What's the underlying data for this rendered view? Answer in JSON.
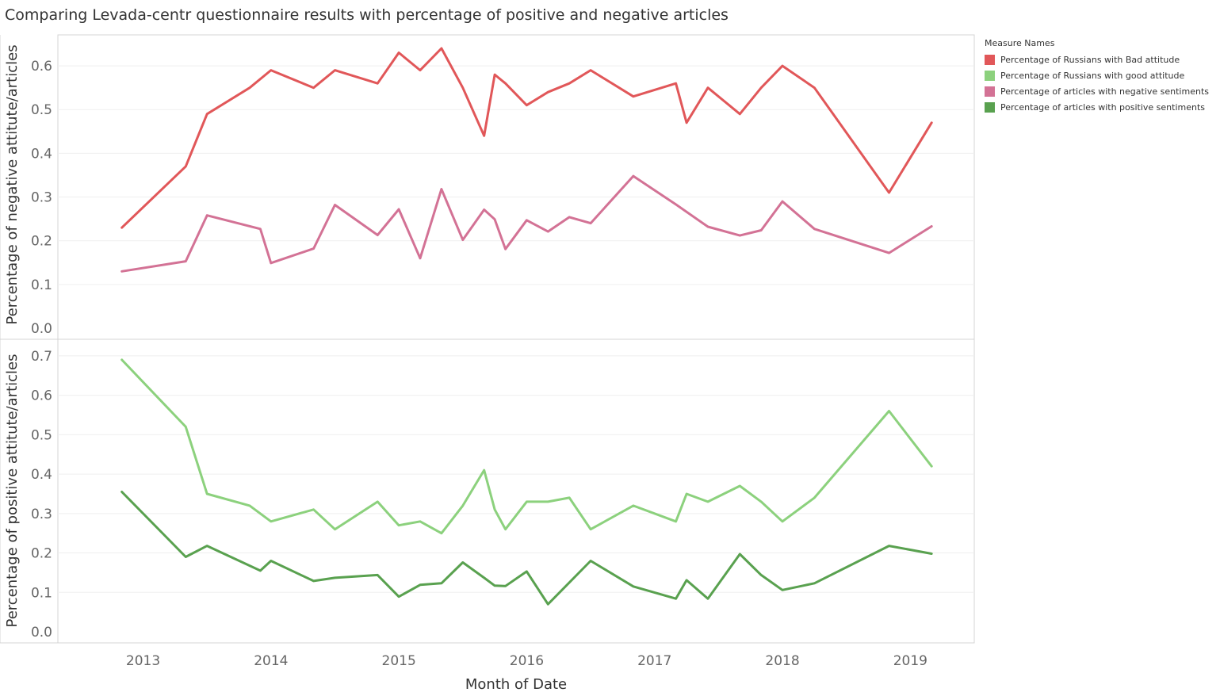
{
  "title": "Comparing Levada-centr questionnaire results with percentage of positive and negative articles",
  "legend": {
    "title": "Measure Names",
    "items": [
      {
        "label": "Percentage of Russians with Bad attitude",
        "color": "#e15759"
      },
      {
        "label": "Percentage of Russians with good attitude",
        "color": "#8cd17d"
      },
      {
        "label": "Percentage of articles with negative sentiments",
        "color": "#d37295"
      },
      {
        "label": "Percentage of articles with positive sentiments",
        "color": "#59a14f"
      }
    ]
  },
  "chart_data": [
    {
      "type": "line",
      "ylabel": "Percentage of negative attitute/articles",
      "ylim": [
        0,
        0.66
      ],
      "yticks": [
        0.0,
        0.1,
        0.2,
        0.3,
        0.4,
        0.5,
        0.6
      ],
      "xlim": [
        "2012-05",
        "2019-07"
      ],
      "grid": true,
      "series": [
        {
          "name": "Percentage of Russians with Bad attitude",
          "color": "#e15759",
          "points": [
            [
              "2012-11",
              0.23
            ],
            [
              "2013-05",
              0.37
            ],
            [
              "2013-07",
              0.49
            ],
            [
              "2013-11",
              0.55
            ],
            [
              "2014-01",
              0.59
            ],
            [
              "2014-05",
              0.55
            ],
            [
              "2014-07",
              0.59
            ],
            [
              "2014-11",
              0.56
            ],
            [
              "2015-01",
              0.63
            ],
            [
              "2015-03",
              0.59
            ],
            [
              "2015-05",
              0.64
            ],
            [
              "2015-07",
              0.55
            ],
            [
              "2015-09",
              0.44
            ],
            [
              "2015-10",
              0.58
            ],
            [
              "2015-11",
              0.56
            ],
            [
              "2016-01",
              0.51
            ],
            [
              "2016-03",
              0.54
            ],
            [
              "2016-05",
              0.56
            ],
            [
              "2016-07",
              0.59
            ],
            [
              "2016-11",
              0.53
            ],
            [
              "2017-03",
              0.56
            ],
            [
              "2017-04",
              0.47
            ],
            [
              "2017-06",
              0.55
            ],
            [
              "2017-09",
              0.49
            ],
            [
              "2017-11",
              0.55
            ],
            [
              "2018-01",
              0.6
            ],
            [
              "2018-04",
              0.55
            ],
            [
              "2018-11",
              0.31
            ],
            [
              "2019-03",
              0.47
            ]
          ]
        },
        {
          "name": "Percentage of articles with negative sentiments",
          "color": "#d37295",
          "points": [
            [
              "2012-11",
              0.13
            ],
            [
              "2013-05",
              0.153
            ],
            [
              "2013-07",
              0.258
            ],
            [
              "2013-12",
              0.227
            ],
            [
              "2014-01",
              0.149
            ],
            [
              "2014-05",
              0.182
            ],
            [
              "2014-07",
              0.282
            ],
            [
              "2014-11",
              0.213
            ],
            [
              "2015-01",
              0.272
            ],
            [
              "2015-03",
              0.16
            ],
            [
              "2015-05",
              0.318
            ],
            [
              "2015-07",
              0.202
            ],
            [
              "2015-09",
              0.271
            ],
            [
              "2015-10",
              0.249
            ],
            [
              "2015-11",
              0.181
            ],
            [
              "2016-01",
              0.247
            ],
            [
              "2016-03",
              0.221
            ],
            [
              "2016-05",
              0.254
            ],
            [
              "2016-07",
              0.24
            ],
            [
              "2016-11",
              0.348
            ],
            [
              "2017-03",
              0.283
            ],
            [
              "2017-06",
              0.232
            ],
            [
              "2017-09",
              0.212
            ],
            [
              "2017-11",
              0.224
            ],
            [
              "2018-01",
              0.29
            ],
            [
              "2018-04",
              0.227
            ],
            [
              "2018-11",
              0.172
            ],
            [
              "2019-03",
              0.233
            ]
          ]
        }
      ]
    },
    {
      "type": "line",
      "ylabel": "Percentage of positive attitute/articles",
      "ylim": [
        0,
        0.73
      ],
      "yticks": [
        0.0,
        0.1,
        0.2,
        0.3,
        0.4,
        0.5,
        0.6,
        0.7
      ],
      "xlabel": "Month of Date",
      "xticks": [
        "2013",
        "2014",
        "2015",
        "2016",
        "2017",
        "2018",
        "2019"
      ],
      "xlim": [
        "2012-05",
        "2019-07"
      ],
      "grid": true,
      "series": [
        {
          "name": "Percentage of Russians with good attitude",
          "color": "#8cd17d",
          "points": [
            [
              "2012-11",
              0.69
            ],
            [
              "2013-05",
              0.52
            ],
            [
              "2013-07",
              0.35
            ],
            [
              "2013-11",
              0.32
            ],
            [
              "2014-01",
              0.28
            ],
            [
              "2014-05",
              0.31
            ],
            [
              "2014-07",
              0.26
            ],
            [
              "2014-11",
              0.33
            ],
            [
              "2015-01",
              0.27
            ],
            [
              "2015-03",
              0.28
            ],
            [
              "2015-05",
              0.25
            ],
            [
              "2015-07",
              0.32
            ],
            [
              "2015-09",
              0.41
            ],
            [
              "2015-10",
              0.31
            ],
            [
              "2015-11",
              0.26
            ],
            [
              "2016-01",
              0.33
            ],
            [
              "2016-03",
              0.33
            ],
            [
              "2016-05",
              0.34
            ],
            [
              "2016-07",
              0.26
            ],
            [
              "2016-11",
              0.32
            ],
            [
              "2017-03",
              0.28
            ],
            [
              "2017-04",
              0.35
            ],
            [
              "2017-06",
              0.33
            ],
            [
              "2017-09",
              0.37
            ],
            [
              "2017-11",
              0.33
            ],
            [
              "2018-01",
              0.28
            ],
            [
              "2018-04",
              0.34
            ],
            [
              "2018-11",
              0.56
            ],
            [
              "2019-03",
              0.42
            ]
          ]
        },
        {
          "name": "Percentage of articles with positive sentiments",
          "color": "#59a14f",
          "points": [
            [
              "2012-11",
              0.355
            ],
            [
              "2013-05",
              0.19
            ],
            [
              "2013-07",
              0.218
            ],
            [
              "2013-12",
              0.155
            ],
            [
              "2014-01",
              0.18
            ],
            [
              "2014-05",
              0.129
            ],
            [
              "2014-07",
              0.137
            ],
            [
              "2014-11",
              0.144
            ],
            [
              "2015-01",
              0.089
            ],
            [
              "2015-03",
              0.119
            ],
            [
              "2015-05",
              0.123
            ],
            [
              "2015-07",
              0.176
            ],
            [
              "2015-09",
              0.137
            ],
            [
              "2015-10",
              0.117
            ],
            [
              "2015-11",
              0.116
            ],
            [
              "2016-01",
              0.153
            ],
            [
              "2016-03",
              0.07
            ],
            [
              "2016-07",
              0.18
            ],
            [
              "2016-11",
              0.115
            ],
            [
              "2017-03",
              0.084
            ],
            [
              "2017-04",
              0.131
            ],
            [
              "2017-06",
              0.084
            ],
            [
              "2017-09",
              0.197
            ],
            [
              "2017-11",
              0.144
            ],
            [
              "2018-01",
              0.106
            ],
            [
              "2018-04",
              0.123
            ],
            [
              "2018-11",
              0.218
            ],
            [
              "2019-03",
              0.198
            ]
          ]
        }
      ]
    }
  ]
}
